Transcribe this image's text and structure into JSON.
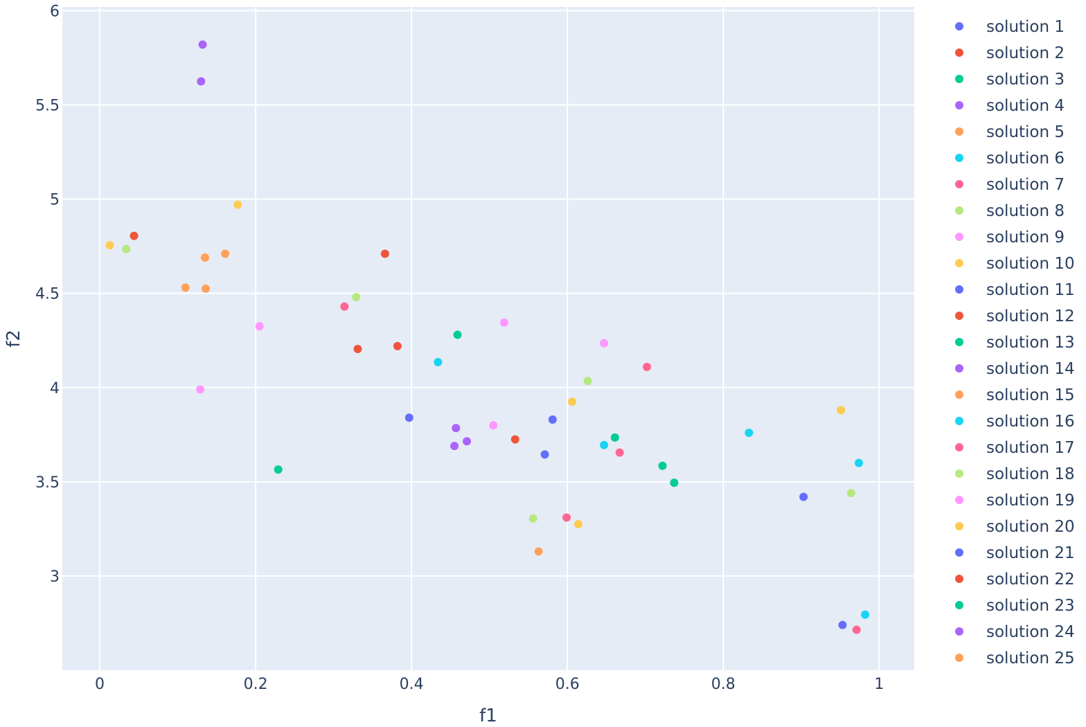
{
  "chart_data": {
    "type": "scatter",
    "title": "",
    "xlabel": "f1",
    "ylabel": "f2",
    "xlim": [
      -0.048,
      1.045
    ],
    "ylim": [
      2.5,
      6.02
    ],
    "x_ticks": [
      0,
      0.2,
      0.4,
      0.6,
      0.8,
      1
    ],
    "x_tick_labels": [
      "0",
      "0.2",
      "0.4",
      "0.6",
      "0.8",
      "1"
    ],
    "y_ticks": [
      3,
      3.5,
      4,
      4.5,
      5,
      5.5,
      6
    ],
    "y_tick_labels": [
      "3",
      "3.5",
      "4",
      "4.5",
      "5",
      "5.5",
      "6"
    ],
    "grid": true,
    "legend_position": "right",
    "series": [
      {
        "name": "solution 1",
        "color": "#636efa",
        "points": [
          [
            0.397,
            3.84
          ],
          [
            0.953,
            2.74
          ]
        ]
      },
      {
        "name": "solution 2",
        "color": "#EF553B",
        "points": [
          [
            0.044,
            4.805
          ],
          [
            0.382,
            4.22
          ]
        ]
      },
      {
        "name": "solution 3",
        "color": "#00cc96",
        "points": [
          [
            0.459,
            4.28
          ],
          [
            0.722,
            3.585
          ]
        ]
      },
      {
        "name": "solution 4",
        "color": "#ab63fa",
        "points": [
          [
            0.132,
            5.82
          ],
          [
            0.457,
            3.785
          ]
        ]
      },
      {
        "name": "solution 5",
        "color": "#FFA15A",
        "points": [
          [
            0.161,
            4.71
          ],
          [
            0.563,
            3.13
          ]
        ]
      },
      {
        "name": "solution 6",
        "color": "#19d3f3",
        "points": [
          [
            0.434,
            4.135
          ],
          [
            0.982,
            2.795
          ]
        ]
      },
      {
        "name": "solution 7",
        "color": "#FF6692",
        "points": [
          [
            0.314,
            4.43
          ],
          [
            0.599,
            3.31
          ]
        ]
      },
      {
        "name": "solution 8",
        "color": "#B6E880",
        "points": [
          [
            0.034,
            4.735
          ],
          [
            0.556,
            3.305
          ]
        ]
      },
      {
        "name": "solution 9",
        "color": "#FF97FF",
        "points": [
          [
            0.205,
            4.325
          ],
          [
            0.519,
            4.345
          ]
        ]
      },
      {
        "name": "solution 10",
        "color": "#FECB52",
        "points": [
          [
            0.013,
            4.755
          ],
          [
            0.951,
            3.88
          ]
        ]
      },
      {
        "name": "solution 11",
        "color": "#636efa",
        "points": [
          [
            0.581,
            3.83
          ],
          [
            0.903,
            3.42
          ]
        ]
      },
      {
        "name": "solution 12",
        "color": "#EF553B",
        "points": [
          [
            0.366,
            4.71
          ],
          [
            0.331,
            4.205
          ]
        ]
      },
      {
        "name": "solution 13",
        "color": "#00cc96",
        "points": [
          [
            0.661,
            3.735
          ],
          [
            0.737,
            3.495
          ]
        ]
      },
      {
        "name": "solution 14",
        "color": "#ab63fa",
        "points": [
          [
            0.13,
            5.625
          ],
          [
            0.471,
            3.715
          ]
        ]
      },
      {
        "name": "solution 15",
        "color": "#FFA15A",
        "points": [
          [
            0.135,
            4.69
          ],
          [
            0.11,
            4.53
          ]
        ]
      },
      {
        "name": "solution 16",
        "color": "#19d3f3",
        "points": [
          [
            0.647,
            3.695
          ],
          [
            0.833,
            3.76
          ]
        ]
      },
      {
        "name": "solution 17",
        "color": "#FF6692",
        "points": [
          [
            0.702,
            4.11
          ],
          [
            0.667,
            3.655
          ]
        ]
      },
      {
        "name": "solution 18",
        "color": "#B6E880",
        "points": [
          [
            0.329,
            4.48
          ],
          [
            0.964,
            3.44
          ]
        ]
      },
      {
        "name": "solution 19",
        "color": "#FF97FF",
        "points": [
          [
            0.129,
            3.99
          ],
          [
            0.647,
            4.235
          ]
        ]
      },
      {
        "name": "solution 20",
        "color": "#FECB52",
        "points": [
          [
            0.177,
            4.97
          ],
          [
            0.614,
            3.275
          ]
        ]
      },
      {
        "name": "solution 21",
        "color": "#636efa",
        "points": [
          [
            0.571,
            3.645
          ]
        ]
      },
      {
        "name": "solution 22",
        "color": "#EF553B",
        "points": [
          [
            0.533,
            3.725
          ]
        ]
      },
      {
        "name": "solution 23",
        "color": "#00cc96",
        "points": [
          [
            0.229,
            3.565
          ]
        ]
      },
      {
        "name": "solution 24",
        "color": "#ab63fa",
        "points": [
          [
            0.455,
            3.69
          ]
        ]
      },
      {
        "name": "solution 25",
        "color": "#FFA15A",
        "points": [
          [
            0.136,
            4.525
          ]
        ]
      },
      {
        "name": "solution 16",
        "color": "#19d3f3",
        "points": [
          [
            0.974,
            3.6
          ]
        ],
        "showlegend": false
      },
      {
        "name": "solution 7",
        "color": "#FF6692",
        "points": [
          [
            0.971,
            2.715
          ]
        ],
        "showlegend": false
      },
      {
        "name": "solution 9",
        "color": "#FF97FF",
        "points": [
          [
            0.505,
            3.8
          ]
        ],
        "showlegend": false
      },
      {
        "name": "solution 8",
        "color": "#B6E880",
        "points": [
          [
            0.626,
            4.035
          ]
        ],
        "showlegend": false
      },
      {
        "name": "solution 10",
        "color": "#FECB52",
        "points": [
          [
            0.606,
            3.925
          ]
        ],
        "showlegend": false
      }
    ]
  }
}
